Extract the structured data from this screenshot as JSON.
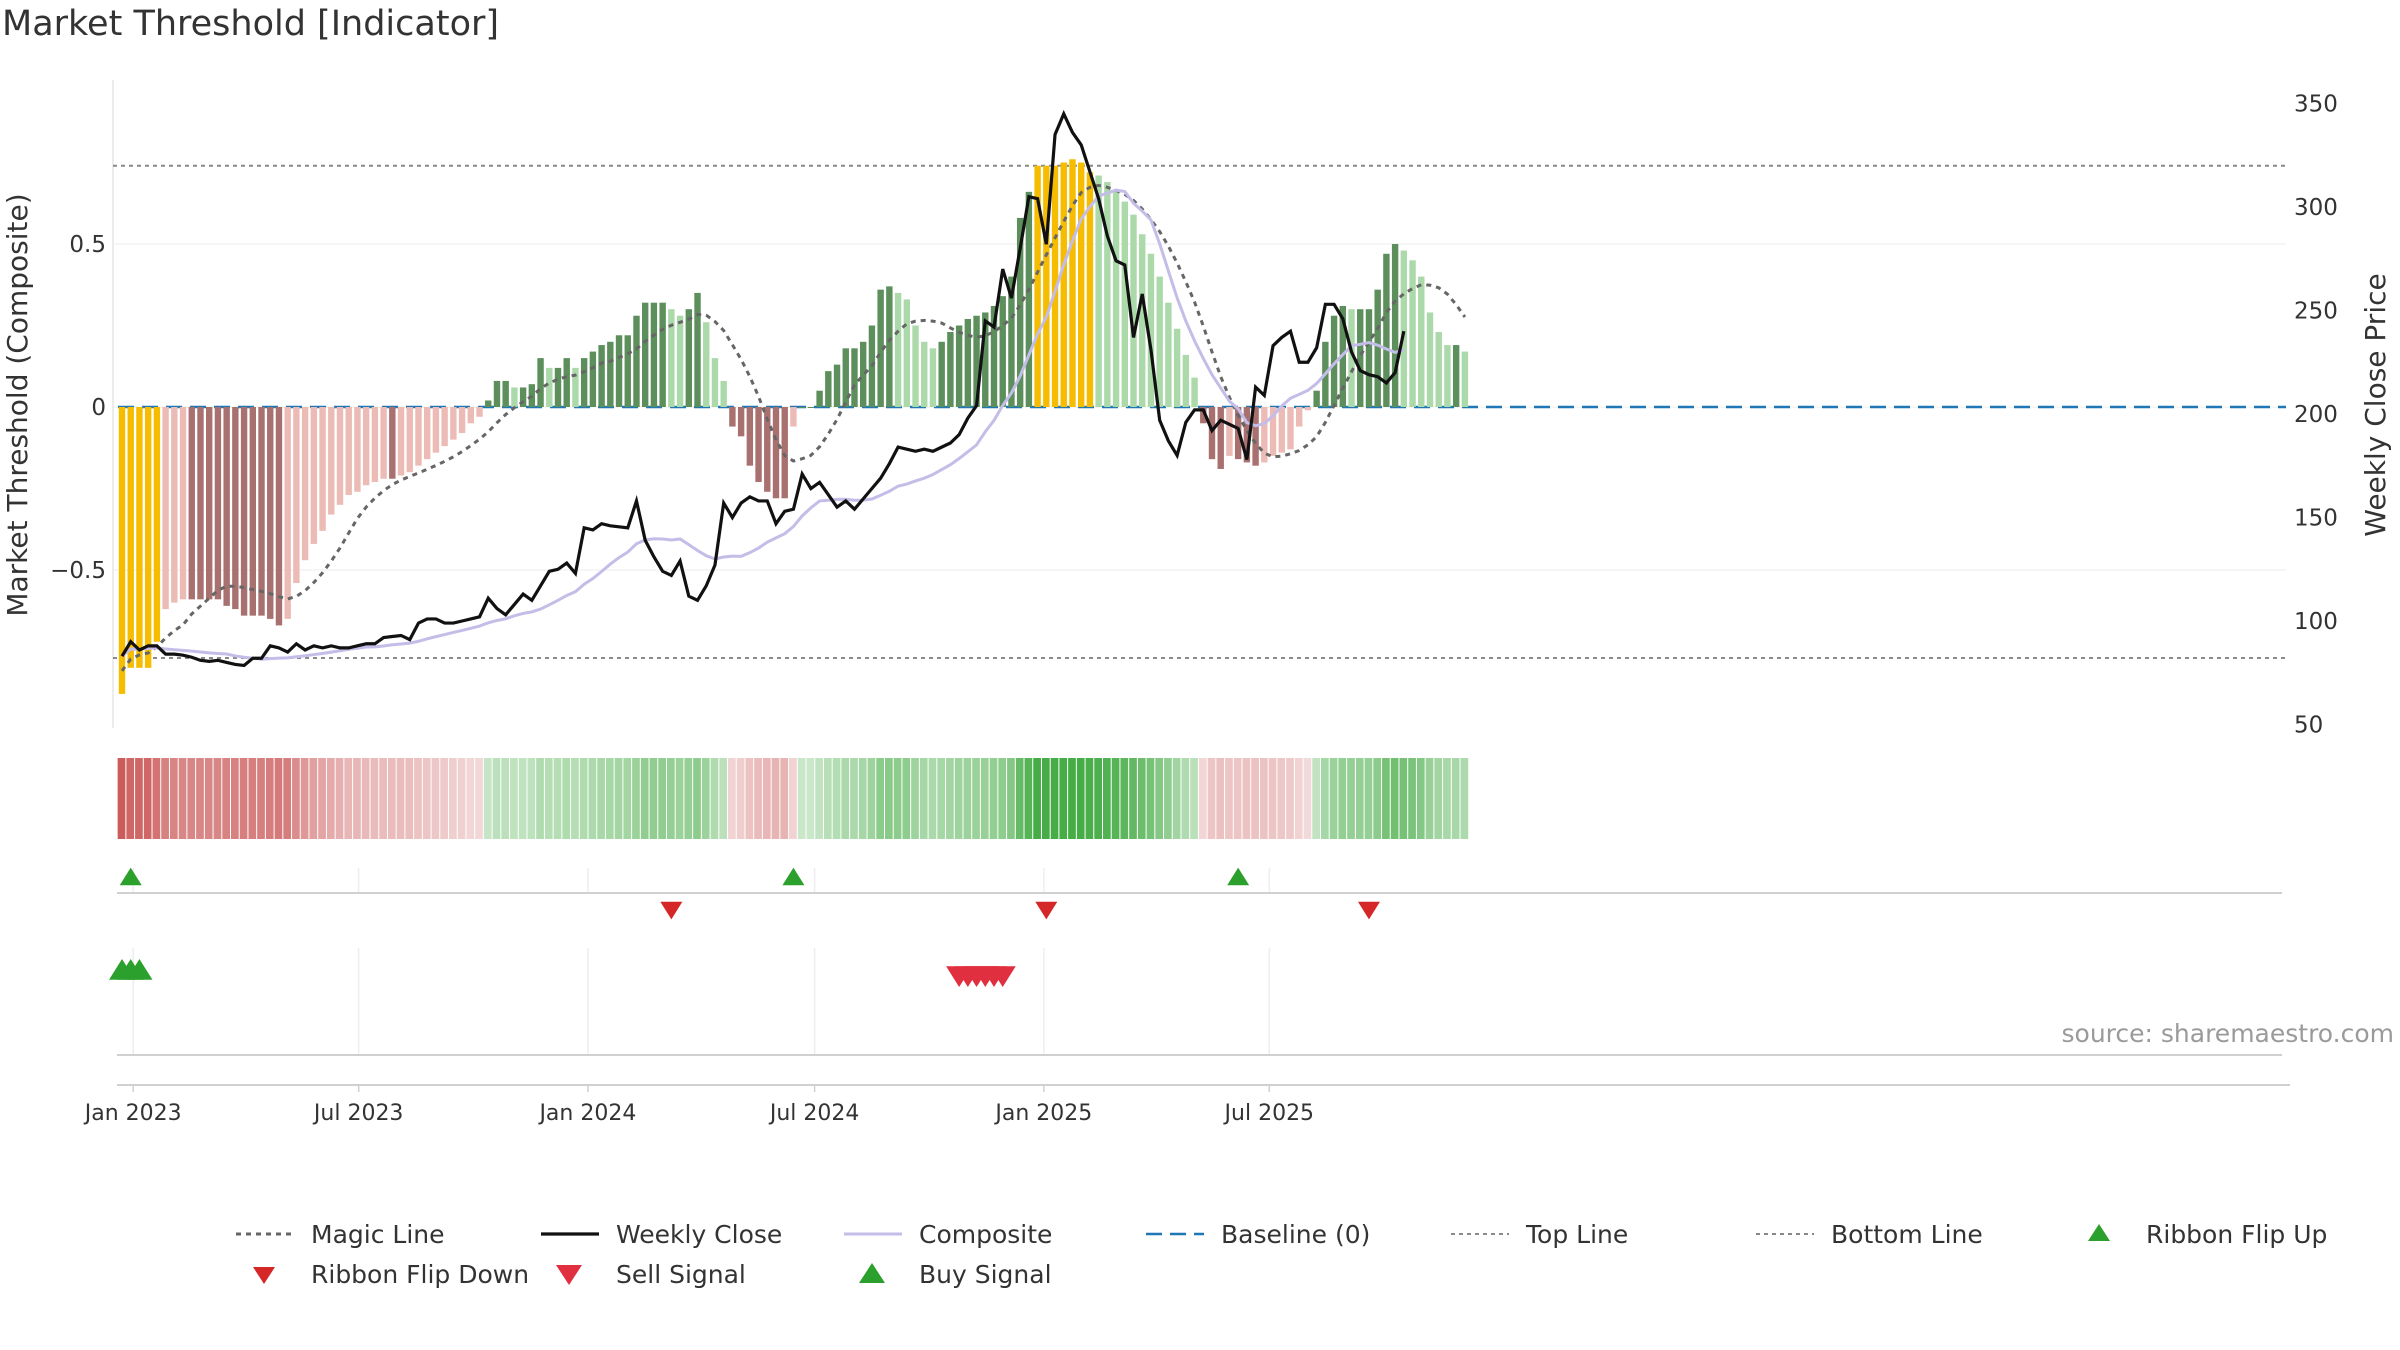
{
  "title": "Market Threshold [Indicator]",
  "source": "source: sharemaestro.com",
  "chart_data": {
    "type": "bar",
    "start_date": "2022-12-23",
    "left_axis": {
      "label": "Market Threshold (Composite)",
      "ticks": [
        "0.5",
        "0",
        "−0.5"
      ],
      "tick_values": [
        0.5,
        0,
        -0.5
      ],
      "ylim": [
        -0.98,
        1.0
      ]
    },
    "right_axis": {
      "label": "Weekly Close Price",
      "ticks": [
        "350",
        "300",
        "250",
        "200",
        "150",
        "100",
        "50"
      ],
      "tick_values": [
        350,
        300,
        250,
        200,
        150,
        100,
        50
      ],
      "ylim": [
        45,
        355
      ]
    },
    "x_ticks": [
      "Jan 2023",
      "Jul 2023",
      "Jan 2024",
      "Jul 2024",
      "Jan 2025",
      "Jul 2025"
    ],
    "x_tick_dates": [
      "2023-01-01",
      "2023-07-01",
      "2024-01-01",
      "2024-07-01",
      "2025-01-01",
      "2025-07-01"
    ],
    "top_line": 0.74,
    "bottom_line": -0.77,
    "colors": {
      "extreme": "#f5bc00",
      "pos_strong": "#5c8f5c",
      "pos_weak": "#abd9a9",
      "neg_strong": "#a97070",
      "neg_weak": "#ecbbb5",
      "weekly_close": "#111111",
      "composite": "#c3bde8",
      "magic": "#666666",
      "baseline": "#1f77b4",
      "ribbon_up": "#2ca02c",
      "ribbon_down": "#d62728",
      "buy": "#2ca02c",
      "sell": "#e03040"
    },
    "series": [
      {
        "name": "Market Threshold (Composite)",
        "values": [
          -0.88,
          -0.8,
          -0.8,
          -0.8,
          -0.72,
          -0.62,
          -0.6,
          -0.59,
          -0.59,
          -0.59,
          -0.59,
          -0.59,
          -0.61,
          -0.62,
          -0.64,
          -0.64,
          -0.64,
          -0.65,
          -0.67,
          -0.65,
          -0.54,
          -0.47,
          -0.42,
          -0.38,
          -0.33,
          -0.3,
          -0.27,
          -0.26,
          -0.24,
          -0.23,
          -0.22,
          -0.22,
          -0.21,
          -0.2,
          -0.18,
          -0.16,
          -0.14,
          -0.12,
          -0.1,
          -0.08,
          -0.05,
          -0.03,
          0.02,
          0.08,
          0.08,
          0.06,
          0.06,
          0.07,
          0.15,
          0.12,
          0.12,
          0.15,
          0.12,
          0.15,
          0.17,
          0.19,
          0.2,
          0.22,
          0.22,
          0.28,
          0.32,
          0.32,
          0.32,
          0.3,
          0.28,
          0.3,
          0.35,
          0.26,
          0.15,
          0.08,
          -0.06,
          -0.09,
          -0.18,
          -0.23,
          -0.26,
          -0.28,
          -0.28,
          -0.06,
          0.0,
          0.0,
          0.05,
          0.11,
          0.13,
          0.18,
          0.18,
          0.2,
          0.25,
          0.36,
          0.37,
          0.35,
          0.33,
          0.25,
          0.2,
          0.18,
          0.2,
          0.23,
          0.25,
          0.27,
          0.28,
          0.29,
          0.31,
          0.34,
          0.4,
          0.58,
          0.66,
          0.74,
          0.74,
          0.74,
          0.75,
          0.76,
          0.75,
          0.72,
          0.71,
          0.69,
          0.66,
          0.63,
          0.59,
          0.53,
          0.47,
          0.4,
          0.32,
          0.24,
          0.16,
          0.09,
          -0.05,
          -0.16,
          -0.19,
          -0.15,
          -0.16,
          -0.17,
          -0.18,
          -0.17,
          -0.15,
          -0.14,
          -0.13,
          -0.06,
          -0.01,
          0.05,
          0.2,
          0.28,
          0.31,
          0.3,
          0.3,
          0.3,
          0.36,
          0.47,
          0.5,
          0.48,
          0.45,
          0.4,
          0.29,
          0.23,
          0.19,
          0.19,
          0.17
        ]
      },
      {
        "name": "Weekly Close",
        "values": [
          83,
          90,
          86,
          88,
          88,
          84,
          84,
          83.5,
          82.5,
          81,
          80.5,
          81,
          80,
          79,
          78.5,
          82,
          82,
          88,
          87,
          85,
          89,
          86,
          88,
          87,
          88,
          87,
          87,
          88,
          89,
          89,
          92,
          92.5,
          93,
          91,
          99,
          101,
          101,
          99,
          99,
          100,
          101,
          102,
          111,
          106,
          103,
          108,
          113,
          110,
          117,
          124,
          125,
          128,
          123,
          145,
          144,
          147,
          146,
          145.5,
          145,
          158,
          139,
          131,
          124,
          122,
          129,
          112,
          110,
          117,
          127,
          157,
          150,
          157,
          160,
          158,
          158,
          147,
          153,
          154,
          171,
          164,
          167,
          161,
          155,
          158,
          154,
          159,
          164,
          169,
          176,
          184,
          183,
          182,
          183,
          182,
          184,
          186,
          190,
          198,
          204,
          245,
          242,
          270,
          256,
          280,
          305,
          304,
          282,
          335,
          345,
          336,
          330,
          317,
          304,
          286,
          274,
          272,
          237,
          258,
          231,
          197,
          187,
          180,
          196,
          202,
          202,
          192,
          197,
          195,
          193,
          178,
          213,
          209,
          233,
          237,
          240,
          225,
          225,
          232,
          253,
          253,
          246,
          230,
          221,
          219,
          218,
          215,
          220,
          240
        ]
      },
      {
        "name": "Composite",
        "values": [
          -0.76,
          -0.76,
          -0.76,
          -0.76,
          -0.76,
          -0.76,
          -0.76,
          -0.765,
          -0.77,
          -0.77,
          -0.77,
          -0.765,
          -0.76,
          -0.76,
          -0.76,
          -0.755,
          -0.75,
          -0.75,
          -0.745,
          -0.74,
          -0.73,
          -0.72,
          -0.71,
          -0.7,
          -0.68,
          -0.66,
          -0.64,
          -0.62,
          -0.6,
          -0.57,
          -0.54,
          -0.5,
          -0.46,
          -0.42,
          -0.38,
          -0.34,
          -0.3,
          -0.26,
          -0.22,
          -0.18,
          -0.14,
          -0.1,
          -0.06,
          -0.02,
          0.0,
          0.0,
          0.0,
          0.0,
          0.0,
          0.0,
          0.0
        ]
      }
    ],
    "legend": [
      "Magic Line",
      "Weekly Close",
      "Composite",
      "Baseline (0)",
      "Top Line",
      "Bottom Line",
      "Ribbon Flip Up",
      "Ribbon Flip Down",
      "Sell Signal",
      "Buy Signal"
    ],
    "ribbon_flip_up_dates": [
      "2022-12-30",
      "2024-06-14",
      "2025-06-06"
    ],
    "ribbon_flip_down_dates": [
      "2024-03-08",
      "2025-01-03",
      "2025-09-19"
    ],
    "buy_signal_dates": [
      "2022-12-23",
      "2022-12-30",
      "2023-01-06"
    ],
    "sell_signal_dates": [
      "2024-10-25",
      "2024-11-01",
      "2024-11-08",
      "2024-11-15",
      "2024-11-22",
      "2024-11-29"
    ]
  }
}
